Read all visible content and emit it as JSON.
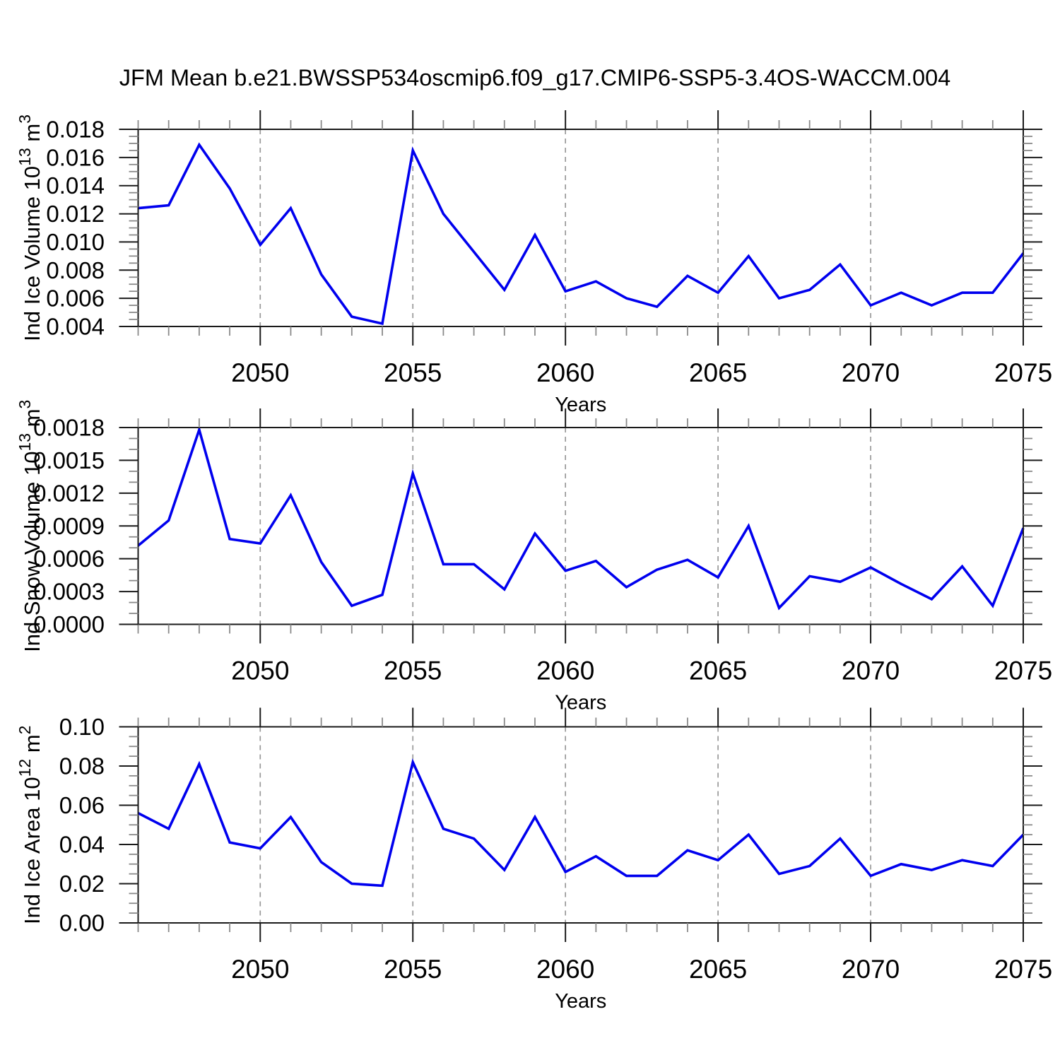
{
  "title": "JFM Mean b.e21.BWSSP534oscmip6.f09_g17.CMIP6-SSP5-3.4OS-WACCM.004",
  "colors": {
    "line": "#0000ee",
    "grid": "#999999",
    "frame": "#1a1a1a",
    "minor_tick": "#8a8a8a",
    "background": "#ffffff"
  },
  "chart_data": [
    {
      "id": "ind-ice-volume",
      "type": "line",
      "ylabel": {
        "base": "Ind Ice Volume 10",
        "sup": "13",
        "unit": " m",
        "unit_sup": "3"
      },
      "xlabel": "Years",
      "ylim": [
        0.004,
        0.018
      ],
      "yminor_step": 0.0005,
      "ytick_labels": [
        "0.018",
        "0.016",
        "0.014",
        "0.012",
        "0.010",
        "0.008",
        "0.006",
        "0.004"
      ],
      "xtick_labels": [
        "2050",
        "2055",
        "2060",
        "2065",
        "2070",
        "2075"
      ],
      "grid_years": [
        2050,
        2055,
        2060,
        2065,
        2070
      ],
      "x": [
        2046,
        2047,
        2048,
        2049,
        2050,
        2051,
        2052,
        2053,
        2054,
        2055,
        2056,
        2057,
        2058,
        2059,
        2060,
        2061,
        2062,
        2063,
        2064,
        2065,
        2066,
        2067,
        2068,
        2069,
        2070,
        2071,
        2072,
        2073,
        2074,
        2075
      ],
      "values": [
        0.0124,
        0.0126,
        0.0169,
        0.0138,
        0.0098,
        0.0124,
        0.0077,
        0.0047,
        0.0042,
        0.0165,
        0.012,
        0.0093,
        0.0066,
        0.0105,
        0.0065,
        0.0072,
        0.006,
        0.0054,
        0.0076,
        0.0064,
        0.009,
        0.006,
        0.0066,
        0.0084,
        0.0055,
        0.0064,
        0.0055,
        0.0064,
        0.0064,
        0.0092
      ]
    },
    {
      "id": "ind-snow-volume",
      "type": "line",
      "ylabel": {
        "base": "Ind Snow Volume 10",
        "sup": "13",
        "unit": " m",
        "unit_sup": "3"
      },
      "xlabel": "Years",
      "ylim": [
        0.0,
        0.0018
      ],
      "yminor_step": 0.0001,
      "ytick_labels": [
        "0.0018",
        "0.0015",
        "0.0012",
        "0.0009",
        "0.0006",
        "0.0003",
        "0.0000"
      ],
      "xtick_labels": [
        "2050",
        "2055",
        "2060",
        "2065",
        "2070",
        "2075"
      ],
      "grid_years": [
        2050,
        2055,
        2060,
        2065,
        2070
      ],
      "x": [
        2046,
        2047,
        2048,
        2049,
        2050,
        2051,
        2052,
        2053,
        2054,
        2055,
        2056,
        2057,
        2058,
        2059,
        2060,
        2061,
        2062,
        2063,
        2064,
        2065,
        2066,
        2067,
        2068,
        2069,
        2070,
        2071,
        2072,
        2073,
        2074,
        2075
      ],
      "values": [
        0.00072,
        0.00095,
        0.00178,
        0.00078,
        0.00074,
        0.00118,
        0.00057,
        0.00017,
        0.00027,
        0.00138,
        0.00055,
        0.00055,
        0.00032,
        0.00083,
        0.00049,
        0.00058,
        0.00034,
        0.0005,
        0.00059,
        0.00043,
        0.0009,
        0.00015,
        0.00044,
        0.00039,
        0.00052,
        0.00037,
        0.00023,
        0.00053,
        0.00017,
        0.00088
      ]
    },
    {
      "id": "ind-ice-area",
      "type": "line",
      "ylabel": {
        "base": "Ind Ice Area 10",
        "sup": "12",
        "unit": " m",
        "unit_sup": "2"
      },
      "xlabel": "Years",
      "ylim": [
        0.0,
        0.1
      ],
      "yminor_step": 0.005,
      "ytick_labels": [
        "0.10",
        "0.08",
        "0.06",
        "0.04",
        "0.02",
        "0.00"
      ],
      "xtick_labels": [
        "2050",
        "2055",
        "2060",
        "2065",
        "2070",
        "2075"
      ],
      "grid_years": [
        2050,
        2055,
        2060,
        2065,
        2070
      ],
      "x": [
        2046,
        2047,
        2048,
        2049,
        2050,
        2051,
        2052,
        2053,
        2054,
        2055,
        2056,
        2057,
        2058,
        2059,
        2060,
        2061,
        2062,
        2063,
        2064,
        2065,
        2066,
        2067,
        2068,
        2069,
        2070,
        2071,
        2072,
        2073,
        2074,
        2075
      ],
      "values": [
        0.056,
        0.048,
        0.081,
        0.041,
        0.038,
        0.054,
        0.031,
        0.02,
        0.019,
        0.082,
        0.048,
        0.043,
        0.027,
        0.054,
        0.026,
        0.034,
        0.024,
        0.024,
        0.037,
        0.032,
        0.045,
        0.025,
        0.029,
        0.043,
        0.024,
        0.03,
        0.027,
        0.032,
        0.029,
        0.045
      ]
    }
  ]
}
